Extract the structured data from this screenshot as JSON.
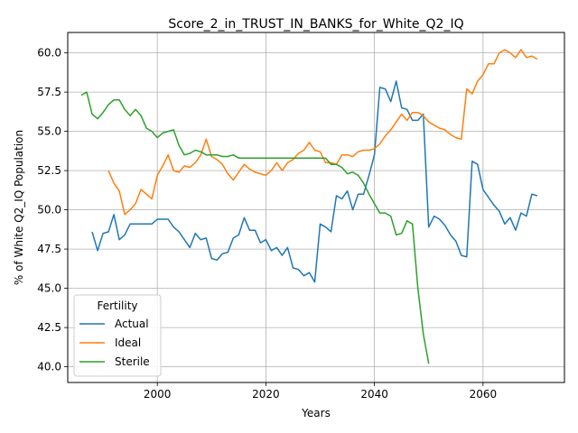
{
  "chart_data": {
    "type": "line",
    "title": "Score_2_in_TRUST_IN_BANKS_for_White_Q2_IQ",
    "xlabel": "Years",
    "ylabel": "% of White Q2_IQ Population",
    "xlim": [
      1983.5,
      2075
    ],
    "ylim": [
      39.0,
      61.3
    ],
    "xticks": [
      2000,
      2020,
      2040,
      2060
    ],
    "xtick_labels": [
      "2000",
      "2020",
      "2040",
      "2060"
    ],
    "yticks": [
      40.0,
      42.5,
      45.0,
      47.5,
      50.0,
      52.5,
      55.0,
      57.5,
      60.0
    ],
    "ytick_labels": [
      "40.0",
      "42.5",
      "45.0",
      "47.5",
      "50.0",
      "52.5",
      "55.0",
      "57.5",
      "60.0"
    ],
    "grid": true,
    "legend": {
      "title": "Fertility",
      "placement": "lower-left"
    },
    "series": [
      {
        "name": "Actual",
        "color": "#1f77b4",
        "x": [
          1988,
          1989,
          1990,
          1991,
          1992,
          1993,
          1994,
          1995,
          1996,
          1997,
          1998,
          1999,
          2000,
          2001,
          2002,
          2003,
          2004,
          2005,
          2006,
          2007,
          2008,
          2009,
          2010,
          2011,
          2012,
          2013,
          2014,
          2015,
          2016,
          2017,
          2018,
          2019,
          2020,
          2021,
          2022,
          2023,
          2024,
          2025,
          2026,
          2027,
          2028,
          2029,
          2030,
          2031,
          2032,
          2033,
          2034,
          2035,
          2036,
          2037,
          2038,
          2039,
          2040,
          2041,
          2042,
          2043,
          2044,
          2045,
          2046,
          2047,
          2048,
          2049,
          2050,
          2051,
          2052,
          2053,
          2054,
          2055,
          2056,
          2057,
          2058,
          2059,
          2060,
          2061,
          2062,
          2063,
          2064,
          2065,
          2066,
          2067,
          2068,
          2069,
          2070
        ],
        "y": [
          48.6,
          47.4,
          48.5,
          48.6,
          49.7,
          48.1,
          48.4,
          49.1,
          49.1,
          49.1,
          49.1,
          49.1,
          49.4,
          49.4,
          49.4,
          48.9,
          48.6,
          48.1,
          47.6,
          48.5,
          48.1,
          48.2,
          46.9,
          46.8,
          47.2,
          47.3,
          48.2,
          48.4,
          49.5,
          48.7,
          48.7,
          47.9,
          48.1,
          47.4,
          47.6,
          47.1,
          47.6,
          46.3,
          46.2,
          45.8,
          46.0,
          45.4,
          49.1,
          48.9,
          48.6,
          50.9,
          50.7,
          51.2,
          50.0,
          51.0,
          51.0,
          52.2,
          53.5,
          57.8,
          57.7,
          56.9,
          58.2,
          56.5,
          56.4,
          55.7,
          55.7,
          56.1,
          48.9,
          49.6,
          49.4,
          49.0,
          48.4,
          48.0,
          47.1,
          47.0,
          53.1,
          52.9,
          51.3,
          50.8,
          50.3,
          49.9,
          49.1,
          49.5,
          48.7,
          49.8,
          49.6,
          51.0,
          50.9
        ]
      },
      {
        "name": "Ideal",
        "color": "#ff7f0e",
        "x": [
          1991,
          1992,
          1993,
          1994,
          1995,
          1996,
          1997,
          1998,
          1999,
          2000,
          2001,
          2002,
          2003,
          2004,
          2005,
          2006,
          2007,
          2008,
          2009,
          2010,
          2011,
          2012,
          2013,
          2014,
          2015,
          2016,
          2017,
          2018,
          2019,
          2020,
          2021,
          2022,
          2023,
          2024,
          2025,
          2026,
          2027,
          2028,
          2029,
          2030,
          2031,
          2032,
          2033,
          2034,
          2035,
          2036,
          2037,
          2038,
          2039,
          2040,
          2041,
          2042,
          2043,
          2044,
          2045,
          2046,
          2047,
          2048,
          2049,
          2050,
          2051,
          2052,
          2053,
          2054,
          2055,
          2056,
          2057,
          2058,
          2059,
          2060,
          2061,
          2062,
          2063,
          2064,
          2065,
          2066,
          2067,
          2068,
          2069,
          2070
        ],
        "y": [
          52.5,
          51.7,
          51.2,
          49.7,
          50.0,
          50.4,
          51.3,
          51.0,
          50.7,
          52.2,
          52.8,
          53.5,
          52.5,
          52.4,
          52.8,
          52.7,
          53.0,
          53.5,
          54.5,
          53.4,
          53.2,
          52.9,
          52.3,
          51.9,
          52.4,
          52.9,
          52.6,
          52.4,
          52.3,
          52.2,
          52.5,
          53.0,
          52.5,
          53.0,
          53.2,
          53.6,
          53.8,
          54.3,
          53.8,
          53.7,
          53.0,
          53.0,
          52.9,
          53.5,
          53.5,
          53.4,
          53.7,
          53.8,
          53.8,
          53.9,
          54.2,
          54.7,
          55.1,
          55.6,
          56.1,
          55.7,
          56.2,
          56.2,
          56.0,
          55.6,
          55.4,
          55.2,
          55.1,
          54.8,
          54.6,
          54.5,
          57.7,
          57.4,
          58.2,
          58.6,
          59.3,
          59.3,
          60.0,
          60.2,
          60.0,
          59.7,
          60.2,
          59.7,
          59.8,
          59.6
        ]
      },
      {
        "name": "Sterile",
        "color": "#2ca02c",
        "x": [
          1986,
          1987,
          1988,
          1989,
          1990,
          1991,
          1992,
          1993,
          1994,
          1995,
          1996,
          1997,
          1998,
          1999,
          2000,
          2001,
          2002,
          2003,
          2004,
          2005,
          2006,
          2007,
          2008,
          2009,
          2010,
          2011,
          2012,
          2013,
          2014,
          2015,
          2016,
          2017,
          2018,
          2019,
          2020,
          2021,
          2022,
          2023,
          2024,
          2025,
          2026,
          2027,
          2028,
          2029,
          2030,
          2031,
          2032,
          2033,
          2034,
          2035,
          2036,
          2037,
          2038,
          2039,
          2040,
          2041,
          2042,
          2043,
          2044,
          2045,
          2046,
          2047,
          2048,
          2049,
          2050
        ],
        "y": [
          57.3,
          57.5,
          56.1,
          55.8,
          56.2,
          56.7,
          57.0,
          57.0,
          56.4,
          56.0,
          56.4,
          56.0,
          55.2,
          55.0,
          54.6,
          54.9,
          55.0,
          55.1,
          54.1,
          53.5,
          53.6,
          53.8,
          53.7,
          53.5,
          53.5,
          53.5,
          53.4,
          53.4,
          53.5,
          53.3,
          53.3,
          53.3,
          53.3,
          53.3,
          53.3,
          53.3,
          53.3,
          53.3,
          53.3,
          53.3,
          53.3,
          53.3,
          53.3,
          53.3,
          53.3,
          53.3,
          52.9,
          52.9,
          52.7,
          52.3,
          52.4,
          52.2,
          51.7,
          51.0,
          50.4,
          49.8,
          49.8,
          49.6,
          48.4,
          48.5,
          49.3,
          49.1,
          45.0,
          42.1,
          40.2
        ]
      }
    ]
  }
}
